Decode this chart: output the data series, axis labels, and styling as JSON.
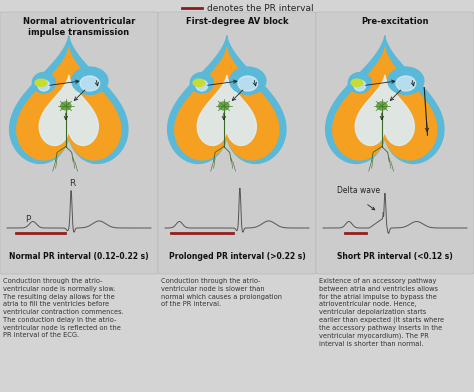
{
  "bg_color": "#d4d4d4",
  "panel_bg": "#cccccc",
  "title_top": "— denotes the PR interval",
  "legend_line_color": "#8B1A1A",
  "panel_titles": [
    "Normal atrioventricular\nimpulse transmission",
    "First-degree AV block",
    "Pre-excitation"
  ],
  "panel_subtitles": [
    "Normal PR interval (0.12–0.22 s)",
    "Prolonged PR interval (>0.22 s)",
    "Short PR interval (<0.12 s)"
  ],
  "descriptions": [
    "Conduction through the atrio-\nventricular node is normally slow.\nThe resulting delay allows for the\natria to fill the ventricles before\nventricular contraction commences.\nThe conduction delay in the atrio-\nventricular node is reflected on the\nPR interval of the ECG.",
    "Conduction through the atrio-\nventricular node is slower than\nnormal which causes a prolongation\nof the PR interval.",
    "Existence of an accessory pathway\nbetween atria and ventricles allows\nfor the atrial impulse to bypass the\natrioventricular node. Hence,\nventricular depolarization starts\nearlier than expected (it starts where\nthe accessory pathway inserts in the\nventricular myocardium). The PR\ninterval is shorter than normal."
  ],
  "heart_blue": "#5ab8d8",
  "heart_orange": "#f5a020",
  "heart_white": "#ddeef8",
  "sa_yellow": "#c8dc30",
  "av_green": "#4a7a30",
  "av_green2": "#6aaa44",
  "ecg_color": "#555555",
  "pr_bar_color": "#922020",
  "text_color": "#222222",
  "desc_color": "#333333"
}
